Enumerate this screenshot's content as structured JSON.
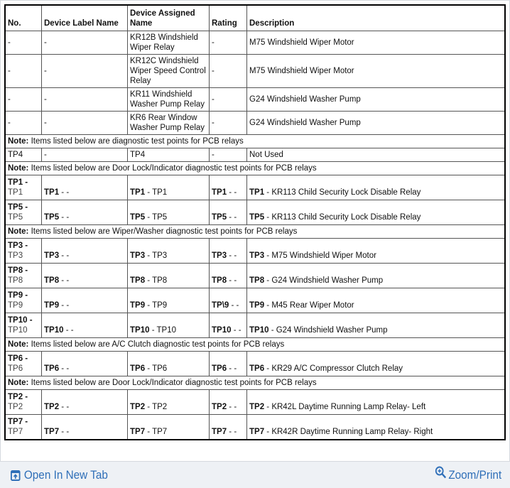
{
  "table": {
    "headers": [
      "No.",
      "Device Label Name",
      "Device Assigned Name",
      "Rating",
      "Description"
    ],
    "rows": [
      {
        "type": "device",
        "cells": [
          "-",
          "-",
          "KR12B Windshield Wiper Relay",
          "-",
          "M75 Windshield Wiper Motor"
        ]
      },
      {
        "type": "device",
        "cells": [
          "-",
          "-",
          "KR12C Windshield Wiper Speed Control Relay",
          "-",
          "M75 Windshield Wiper Motor"
        ]
      },
      {
        "type": "device",
        "cells": [
          "-",
          "-",
          "KR11 Windshield Washer Pump Relay",
          "-",
          "G24 Windshield Washer Pump"
        ]
      },
      {
        "type": "device",
        "cells": [
          "-",
          "-",
          "KR6 Rear Window Washer Pump Relay",
          "-",
          "G24 Windshield Washer Pump"
        ]
      },
      {
        "type": "note",
        "label": "Note:",
        "text": " Items listed below are diagnostic test points for PCB relays"
      },
      {
        "type": "device",
        "cells": [
          "TP4",
          "-",
          "TP4",
          "-",
          "Not Used"
        ]
      },
      {
        "type": "note",
        "label": "Note:",
        "text": " Items listed below are Door Lock/Indicator diagnostic test points for PCB relays"
      },
      {
        "type": "tp",
        "cells": [
          [
            "TP1",
            " -",
            "TP1"
          ],
          [
            "TP1",
            " - -"
          ],
          [
            "TP1",
            " - TP1"
          ],
          [
            "TP1",
            " - -"
          ],
          [
            "TP1",
            " - KR113 Child Security Lock Disable Relay"
          ]
        ]
      },
      {
        "type": "tp",
        "cells": [
          [
            "TP5",
            " -",
            "TP5"
          ],
          [
            "TP5",
            " - -"
          ],
          [
            "TP5",
            " - TP5"
          ],
          [
            "TP5",
            " - -"
          ],
          [
            "TP5",
            " - KR113 Child Security Lock Disable Relay"
          ]
        ]
      },
      {
        "type": "note",
        "label": "Note:",
        "text": " Items listed below are Wiper/Washer diagnostic test points for PCB relays"
      },
      {
        "type": "tp",
        "cells": [
          [
            "TP3",
            " -",
            "TP3"
          ],
          [
            "TP3",
            " - -"
          ],
          [
            "TP3",
            " - TP3"
          ],
          [
            "TP3",
            " - -"
          ],
          [
            "TP3",
            " - M75 Windshield Wiper Motor"
          ]
        ]
      },
      {
        "type": "tp",
        "cells": [
          [
            "TP8",
            " -",
            "TP8"
          ],
          [
            "TP8",
            " - -"
          ],
          [
            "TP8",
            " - TP8"
          ],
          [
            "TP8",
            " - -"
          ],
          [
            "TP8",
            " - G24 Windshield Washer Pump"
          ]
        ]
      },
      {
        "type": "tp",
        "cells": [
          [
            "TP9",
            " -",
            "TP9"
          ],
          [
            "TP9",
            " - -"
          ],
          [
            "TP9",
            " - TP9"
          ],
          [
            "TP\\9",
            " - -"
          ],
          [
            "TP9",
            " - M45 Rear Wiper Motor"
          ]
        ]
      },
      {
        "type": "tp",
        "cells": [
          [
            "TP10",
            " -",
            "TP10"
          ],
          [
            "TP10",
            " - -"
          ],
          [
            "TP10",
            " - TP10"
          ],
          [
            "TP10",
            " - -"
          ],
          [
            "TP10",
            " - G24 Windshield Washer Pump"
          ]
        ]
      },
      {
        "type": "note",
        "label": "Note:",
        "text": " Items listed below are A/C Clutch diagnostic test points for PCB relays"
      },
      {
        "type": "tp",
        "cells": [
          [
            "TP6",
            " -",
            "TP6"
          ],
          [
            "TP6",
            " - -"
          ],
          [
            "TP6",
            " - TP6"
          ],
          [
            "TP6",
            " - -"
          ],
          [
            "TP6",
            " - KR29 A/C Compressor Clutch Relay"
          ]
        ]
      },
      {
        "type": "note",
        "label": "Note:",
        "text": " Items listed below are Door Lock/Indicator diagnostic test points for PCB relays"
      },
      {
        "type": "tp",
        "cells": [
          [
            "TP2",
            " -",
            "TP2"
          ],
          [
            "TP2",
            " - -"
          ],
          [
            "TP2",
            " - TP2"
          ],
          [
            "TP2",
            " - -"
          ],
          [
            "TP2",
            " - KR42L Daytime Running Lamp Relay- Left"
          ]
        ]
      },
      {
        "type": "tp",
        "cells": [
          [
            "TP7",
            " -",
            "TP7"
          ],
          [
            "TP7",
            " - -"
          ],
          [
            "TP7",
            " - TP7"
          ],
          [
            "TP7",
            " - -"
          ],
          [
            "TP7",
            " - KR42R Daytime Running Lamp Relay- Right"
          ]
        ]
      }
    ]
  },
  "footer": {
    "open_new_tab": "Open In New Tab",
    "zoom_print": "Zoom/Print",
    "open_icon": "open-new-tab-icon",
    "zoom_icon": "magnifier-plus-icon",
    "link_color": "#2f6fb8"
  }
}
